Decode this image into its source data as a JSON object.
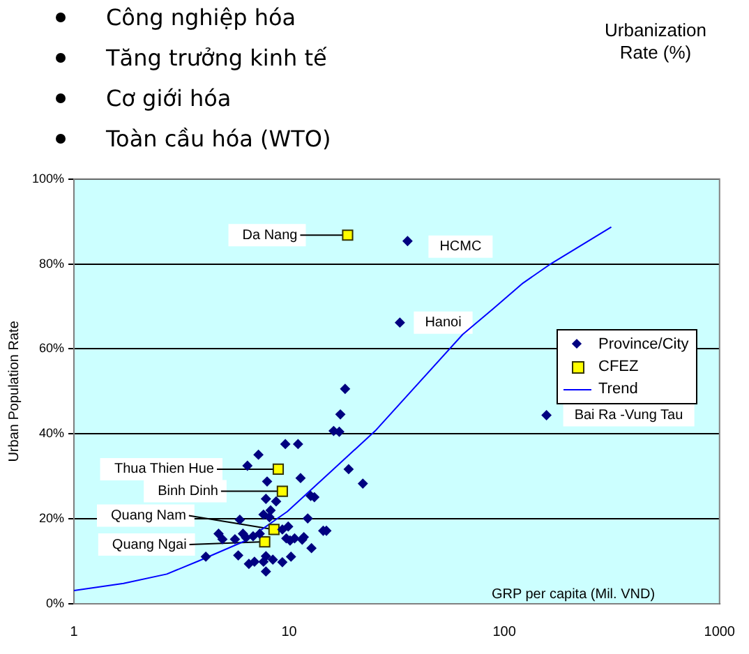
{
  "chart_data": {
    "type": "scatter",
    "title": "Urbanization Rate (%)",
    "annotations": [
      "Công nghiệp hóa",
      "Tăng trưởng kinh tế",
      "Cơ giới hóa",
      "Toàn cầu hóa (WTO)",
      {
        "text": "Da Nang",
        "x": 18.7,
        "y": 86.8
      },
      {
        "text": "HCMC",
        "x": 35.5,
        "y": 85.4
      },
      {
        "text": "Hanoi",
        "x": 32.7,
        "y": 66.2
      },
      {
        "text": "Bai Ra -Vung Tau",
        "x": 157,
        "y": 44.4
      },
      {
        "text": "Thua Thien Hue",
        "x": 8.9,
        "y": 31.7
      },
      {
        "text": "Binh Dinh",
        "x": 9.3,
        "y": 26.5
      },
      {
        "text": "Quang Nam",
        "x": 8.5,
        "y": 17.5
      },
      {
        "text": "Quang Ngai",
        "x": 7.7,
        "y": 14.6
      }
    ],
    "xlabel": "GRP per capita (Mil. VND)",
    "ylabel": "Urban Population Rate",
    "log": "x",
    "xlim": [
      1,
      1000
    ],
    "xticks": [
      1,
      10,
      100,
      1000
    ],
    "ylim": [
      0,
      100
    ],
    "yticks": [
      {
        "value": 0,
        "label": "0%"
      },
      {
        "value": 20,
        "label": "20%"
      },
      {
        "value": 40,
        "label": "40%"
      },
      {
        "value": 60,
        "label": "60%"
      },
      {
        "value": 80,
        "label": "80%"
      },
      {
        "value": 100,
        "label": "100%"
      }
    ],
    "grid": "y",
    "legend": "right",
    "series": [
      {
        "name": "Province/City",
        "type": "scatter",
        "marker": "diamond",
        "color": "#000080",
        "x": [
          7.2,
          6.4,
          9.6,
          11.0,
          7.9,
          11.3,
          7.8,
          8.7,
          8.2,
          7.6,
          8.1,
          5.9,
          12.2,
          12.6,
          13.1,
          9.9,
          9.3,
          4.7,
          4.9,
          5.6,
          6.1,
          6.3,
          6.8,
          7.3,
          9.7,
          10.1,
          10.6,
          11.7,
          11.5,
          14.4,
          14.9,
          12.7,
          5.8,
          4.1,
          10.2,
          6.5,
          6.9,
          7.6,
          7.8,
          8.4,
          9.3,
          7.8,
          18.9,
          22.0,
          17.3,
          16.1,
          17.1,
          18.2,
          35.5,
          32.7,
          157
        ],
        "values": [
          35.1,
          32.5,
          37.6,
          37.6,
          28.8,
          29.6,
          24.7,
          24.1,
          22.0,
          21.0,
          20.4,
          19.8,
          20.1,
          25.4,
          25.1,
          18.2,
          17.5,
          16.5,
          15.2,
          15.2,
          16.5,
          15.6,
          15.9,
          16.5,
          15.4,
          14.9,
          15.4,
          15.7,
          15.1,
          17.2,
          17.2,
          13.1,
          11.4,
          11.1,
          11.1,
          9.4,
          9.9,
          9.9,
          11.2,
          10.4,
          9.8,
          7.6,
          31.7,
          28.3,
          44.6,
          40.7,
          40.5,
          50.6,
          85.4,
          66.2,
          44.4
        ]
      },
      {
        "name": "CFEZ",
        "type": "scatter",
        "marker": "square",
        "color": "#ffff00",
        "x": [
          18.7,
          8.9,
          9.3,
          8.5,
          7.7
        ],
        "values": [
          86.8,
          31.7,
          26.5,
          17.5,
          14.6
        ]
      },
      {
        "name": "Trend",
        "type": "line",
        "marker": "none",
        "color": "#0000ff",
        "x": [
          1,
          1.7,
          2.7,
          3.8,
          6.3,
          9.8,
          15.3,
          25.1,
          64,
          89,
          122,
          165,
          314
        ],
        "values": [
          3.1,
          4.8,
          7.0,
          10.1,
          14.9,
          21.7,
          30.7,
          40.7,
          63.4,
          69.5,
          75.5,
          80.1,
          88.7
        ]
      }
    ]
  }
}
